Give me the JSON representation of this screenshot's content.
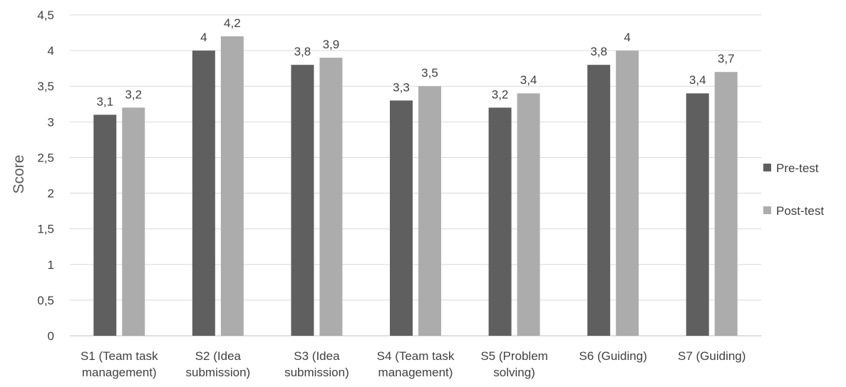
{
  "chart_data": {
    "type": "bar",
    "title": "",
    "xlabel": "",
    "ylabel": "Score",
    "ylim": [
      0,
      4.5
    ],
    "ytick_step": 0.5,
    "ytick_labels": [
      "0",
      "0,5",
      "1",
      "1,5",
      "2",
      "2,5",
      "3",
      "3,5",
      "4",
      "4,5"
    ],
    "grid": true,
    "legend_position": "right",
    "categories": [
      [
        "S1 (Team task",
        "management)"
      ],
      [
        "S2 (Idea",
        "submission)"
      ],
      [
        "S3 (Idea",
        "submission)"
      ],
      [
        "S4 (Team task",
        "management)"
      ],
      [
        "S5 (Problem",
        "solving)"
      ],
      [
        "S6 (Guiding)"
      ],
      [
        "S7 (Guiding)"
      ]
    ],
    "series": [
      {
        "name": "Pre-test",
        "color": "#5f5f5f",
        "values": [
          3.1,
          4,
          3.8,
          3.3,
          3.2,
          3.8,
          3.4
        ],
        "labels": [
          "3,1",
          "4",
          "3,8",
          "3,3",
          "3,2",
          "3,8",
          "3,4"
        ]
      },
      {
        "name": "Post-test",
        "color": "#acacac",
        "values": [
          3.2,
          4.2,
          3.9,
          3.5,
          3.4,
          4,
          3.7
        ],
        "labels": [
          "3,2",
          "4,2",
          "3,9",
          "3,5",
          "3,4",
          "4",
          "3,7"
        ]
      }
    ]
  }
}
